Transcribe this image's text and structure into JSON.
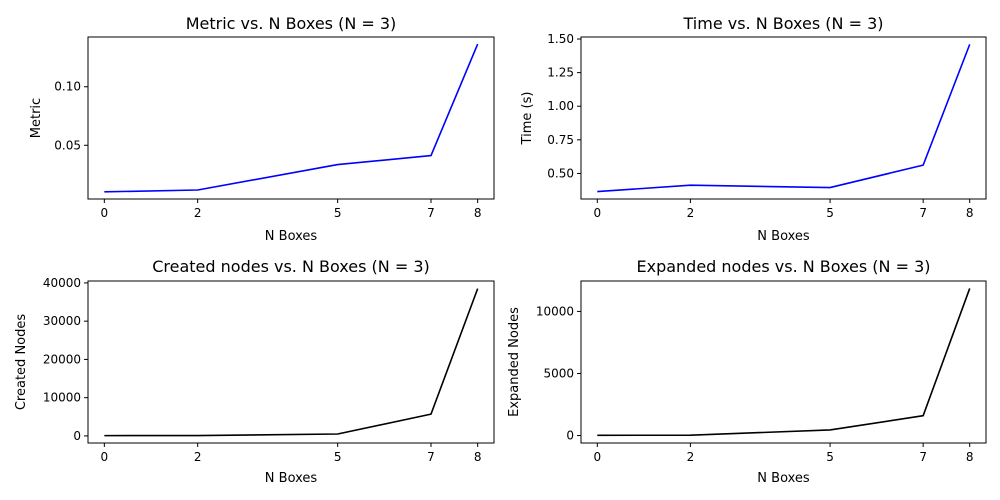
{
  "chart_data": [
    {
      "type": "line",
      "title": "Metric vs. N Boxes (N = 3)",
      "xlabel": "N Boxes",
      "ylabel": "Metric",
      "x": [
        0,
        2,
        5,
        7,
        8
      ],
      "xticks": [
        0,
        2,
        5,
        7,
        8
      ],
      "xlim": [
        -0.35,
        8.35
      ],
      "ylim": [
        0.0041,
        0.1425
      ],
      "yticks": [
        0.05,
        0.1
      ],
      "ytick_labels": [
        "0.05",
        "0.10"
      ],
      "series": [
        {
          "values": [
            0.0102,
            0.0118,
            0.0335,
            0.0412,
            0.1365
          ],
          "color": "#0000ff"
        }
      ],
      "grid": false
    },
    {
      "type": "line",
      "title": "Time vs. N Boxes (N = 3)",
      "xlabel": "N Boxes",
      "ylabel": "Time (s)",
      "x": [
        0,
        2,
        5,
        7,
        8
      ],
      "xticks": [
        0,
        2,
        5,
        7,
        8
      ],
      "xlim": [
        -0.35,
        8.35
      ],
      "ylim": [
        0.31,
        1.515
      ],
      "yticks": [
        0.5,
        0.75,
        1.0,
        1.25,
        1.5
      ],
      "ytick_labels": [
        "0.50",
        "0.75",
        "1.00",
        "1.25",
        "1.50"
      ],
      "series": [
        {
          "values": [
            0.365,
            0.413,
            0.395,
            0.562,
            1.46
          ],
          "color": "#0000ff"
        }
      ],
      "grid": false
    },
    {
      "type": "line",
      "title": "Created nodes vs. N Boxes (N = 3)",
      "xlabel": "N Boxes",
      "ylabel": "Created Nodes",
      "x": [
        0,
        2,
        5,
        7,
        8
      ],
      "xticks": [
        0,
        2,
        5,
        7,
        8
      ],
      "xlim": [
        -0.35,
        8.35
      ],
      "ylim": [
        -1850,
        40500
      ],
      "yticks": [
        0,
        10000,
        20000,
        30000,
        40000
      ],
      "ytick_labels": [
        "0",
        "10000",
        "20000",
        "30000",
        "40000"
      ],
      "series": [
        {
          "values": [
            80,
            100,
            500,
            5700,
            38500
          ],
          "color": "#000000"
        }
      ],
      "grid": false
    },
    {
      "type": "line",
      "title": "Expanded nodes vs. N Boxes (N = 3)",
      "xlabel": "N Boxes",
      "ylabel": "Expanded Nodes",
      "x": [
        0,
        2,
        5,
        7,
        8
      ],
      "xticks": [
        0,
        2,
        5,
        7,
        8
      ],
      "xlim": [
        -0.35,
        8.35
      ],
      "ylim": [
        -600,
        12450
      ],
      "yticks": [
        0,
        5000,
        10000
      ],
      "ytick_labels": [
        "0",
        "5000",
        "10000"
      ],
      "series": [
        {
          "values": [
            20,
            30,
            450,
            1600,
            11850
          ],
          "color": "#000000"
        }
      ],
      "grid": false
    }
  ]
}
